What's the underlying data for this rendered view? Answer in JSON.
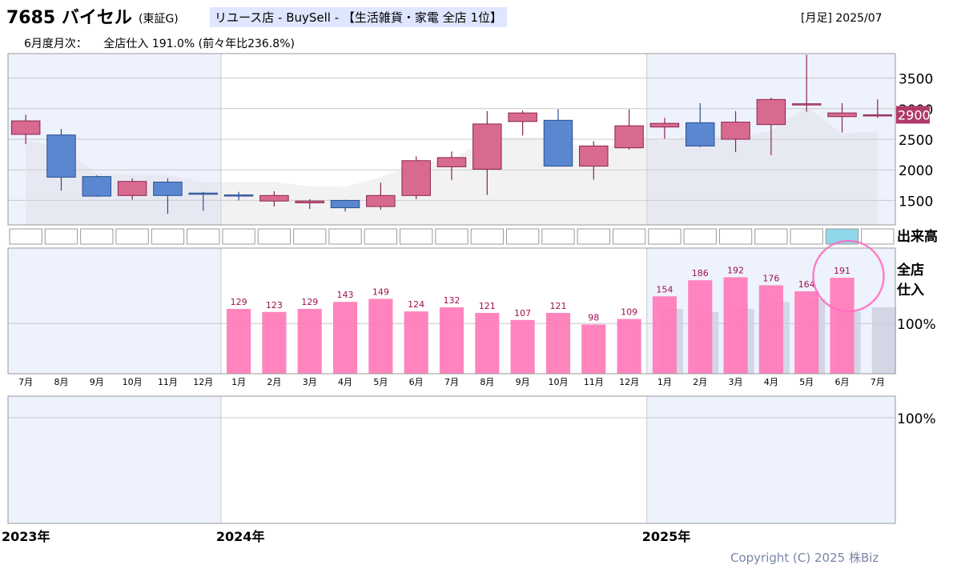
{
  "header": {
    "ticker": "7685 バイセル",
    "market": "(東証G)",
    "category": "リユース店 - BuySell - 【生活雑貨・家電 全店 1位】",
    "period": "[月足] 2025/07",
    "monthly_label": "6月度月次：",
    "monthly_value": "全店仕入 191.0% (前々年比236.8%)"
  },
  "chart_data": [
    {
      "type": "candlestick",
      "categories": [
        "2023-07",
        "2023-08",
        "2023-09",
        "2023-10",
        "2023-11",
        "2023-12",
        "2024-01",
        "2024-02",
        "2024-03",
        "2024-04",
        "2024-05",
        "2024-06",
        "2024-07",
        "2024-08",
        "2024-09",
        "2024-10",
        "2024-11",
        "2024-12",
        "2025-01",
        "2025-02",
        "2025-03",
        "2025-04",
        "2025-05",
        "2025-06",
        "2025-07"
      ],
      "open": [
        2580,
        2570,
        1890,
        1580,
        1800,
        1620,
        1590,
        1490,
        1460,
        1500,
        1400,
        1580,
        2050,
        2010,
        2790,
        2810,
        2060,
        2360,
        2700,
        2770,
        2500,
        2740,
        3080,
        2870,
        2900
      ],
      "high": [
        2900,
        2670,
        1910,
        1860,
        1860,
        1640,
        1640,
        1650,
        1520,
        1510,
        1790,
        2220,
        2300,
        2960,
        2970,
        2990,
        2470,
        2990,
        2850,
        3090,
        2960,
        3180,
        3880,
        3090,
        3150
      ],
      "low": [
        2420,
        1660,
        1560,
        1510,
        1280,
        1330,
        1500,
        1400,
        1360,
        1320,
        1350,
        1520,
        1830,
        1590,
        2560,
        2060,
        1840,
        2330,
        2510,
        2370,
        2290,
        2240,
        2950,
        2610,
        2850
      ],
      "close": [
        2800,
        1880,
        1570,
        1810,
        1580,
        1600,
        1580,
        1580,
        1490,
        1380,
        1580,
        2150,
        2200,
        2750,
        2930,
        2060,
        2390,
        2720,
        2760,
        2390,
        2780,
        3150,
        3080,
        2930,
        2900
      ],
      "ylim": [
        1100,
        3900
      ],
      "yticks": [
        1500,
        2000,
        2500,
        3000,
        3500
      ],
      "last_price": "2900",
      "grid": true,
      "legend": "none"
    },
    {
      "type": "bar",
      "series_label": "全店仕入",
      "series_label_lines": [
        "全店",
        "仕入"
      ],
      "categories": [
        "2024-01",
        "2024-02",
        "2024-03",
        "2024-04",
        "2024-05",
        "2024-06",
        "2024-07",
        "2024-08",
        "2024-09",
        "2024-10",
        "2024-11",
        "2024-12",
        "2025-01",
        "2025-02",
        "2025-03",
        "2025-04",
        "2025-05",
        "2025-06"
      ],
      "values": [
        129,
        123,
        129,
        143,
        149,
        124,
        132,
        121,
        107,
        121,
        98,
        109,
        154,
        186,
        192,
        176,
        164,
        191
      ],
      "comparison_values": [
        129,
        123,
        129,
        143,
        149,
        124,
        132
      ],
      "reference_label": "100%",
      "highlighted": "2025-06",
      "ylim": [
        0,
        250
      ]
    }
  ],
  "sales_row": {
    "label": "出来高",
    "highlighted": "2025-06"
  },
  "month_labels": [
    "7月",
    "8月",
    "9月",
    "10月",
    "11月",
    "12月",
    "1月",
    "2月",
    "3月",
    "4月",
    "5月",
    "6月",
    "7月",
    "8月",
    "9月",
    "10月",
    "11月",
    "12月",
    "1月",
    "2月",
    "3月",
    "4月",
    "5月",
    "6月",
    "7月"
  ],
  "lower_panel": {
    "reference_label": "100%"
  },
  "year_labels": [
    "2023年",
    "2024年",
    "2025年"
  ],
  "copyright": "Copyright (C) 2025 株Biz",
  "colors": {
    "up_candle": "#d96a8f",
    "down_candle": "#5b86d0",
    "bar": "#ff7ab8",
    "comparison_bar": "#cdd1e0",
    "shade": "#eef2fd",
    "highlight_circle": "#ff6cc0",
    "highlight_cell": "#8fd8ec",
    "bar_label": "#a01050"
  }
}
